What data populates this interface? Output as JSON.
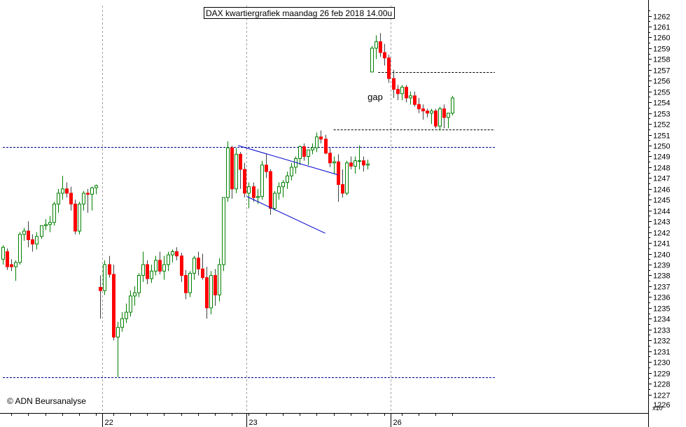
{
  "chart_data": {
    "type": "candlestick",
    "title": "DAX kwartiergrafiek maandag 26 feb 2018 14.00u",
    "copyright": "© ADN Beursanalyse",
    "y_unit_label": "x10",
    "ylim": [
      12260,
      12630
    ],
    "y_ticks": [
      12270,
      12280,
      12290,
      12300,
      12310,
      12320,
      12330,
      12340,
      12350,
      12360,
      12370,
      12380,
      12390,
      12400,
      12410,
      12420,
      12430,
      12440,
      12450,
      12460,
      12470,
      12480,
      12490,
      12500,
      12510,
      12520,
      12530,
      12540,
      12550,
      12560,
      12570,
      12580,
      12590,
      12600,
      12610,
      12620
    ],
    "y_tick_labels": [
      "1227",
      "1228",
      "1229",
      "1230",
      "1231",
      "1232",
      "1233",
      "1234",
      "1235",
      "1236",
      "1237",
      "1238",
      "1239",
      "1240",
      "1241",
      "1242",
      "1243",
      "1244",
      "1245",
      "1246",
      "1247",
      "1248",
      "1249",
      "1250",
      "1251",
      "1252",
      "1253",
      "1254",
      "1255",
      "1256",
      "1257",
      "1258",
      "1259",
      "1260",
      "1261",
      "1262"
    ],
    "y_bottom_partial_label": "1226",
    "x_labels": [
      {
        "label": "22",
        "bar": 23.5
      },
      {
        "label": "23",
        "bar": 57.5
      },
      {
        "label": "26",
        "bar": 91.5
      }
    ],
    "annotations": [
      {
        "text": "gap",
        "bar": 86,
        "price": 12542
      }
    ],
    "horizontal_lines": [
      {
        "price": 12499,
        "from_bar": 0,
        "to_bar": 116,
        "color": "#00008b",
        "dashed": true
      },
      {
        "price": 12286,
        "from_bar": 0,
        "to_bar": 116,
        "color": "#00008b",
        "dashed": true
      },
      {
        "price": 12568,
        "from_bar": 88.5,
        "to_bar": 116,
        "color": "#000000",
        "dashed": true
      },
      {
        "price": 12515,
        "from_bar": 78,
        "to_bar": 116,
        "color": "#000000",
        "dashed": true
      }
    ],
    "trend_lines": [
      {
        "from_bar": 55.5,
        "from_price": 12500,
        "to_bar": 79,
        "to_price": 12473,
        "color": "#0000cd"
      },
      {
        "from_bar": 57.5,
        "from_price": 12453,
        "to_bar": 76,
        "to_price": 12419,
        "color": "#0000cd"
      }
    ],
    "vertical_gridlines_bars": [
      23.5,
      57.5,
      91.5
    ],
    "candles": [
      [
        12395,
        12408,
        12390,
        12406
      ],
      [
        12402,
        12405,
        12385,
        12388
      ],
      [
        12390,
        12395,
        12384,
        12388
      ],
      [
        12388,
        12394,
        12375,
        12392
      ],
      [
        12392,
        12420,
        12390,
        12418
      ],
      [
        12418,
        12424,
        12412,
        12421
      ],
      [
        12421,
        12430,
        12406,
        12413
      ],
      [
        12413,
        12418,
        12402,
        12409
      ],
      [
        12409,
        12420,
        12404,
        12416
      ],
      [
        12416,
        12426,
        12414,
        12426
      ],
      [
        12426,
        12432,
        12422,
        12427
      ],
      [
        12427,
        12435,
        12420,
        12429
      ],
      [
        12429,
        12448,
        12426,
        12446
      ],
      [
        12446,
        12460,
        12438,
        12456
      ],
      [
        12456,
        12472,
        12450,
        12460
      ],
      [
        12460,
        12466,
        12452,
        12456
      ],
      [
        12456,
        12462,
        12440,
        12446
      ],
      [
        12446,
        12450,
        12418,
        12421
      ],
      [
        12421,
        12448,
        12418,
        12446
      ],
      [
        12446,
        12458,
        12440,
        12456
      ],
      [
        12456,
        12460,
        12438,
        12455
      ],
      [
        12455,
        12462,
        12440,
        12461
      ],
      [
        12461,
        12464,
        12455,
        12463
      ],
      [
        12369,
        12380,
        12340,
        12366
      ],
      [
        12366,
        12394,
        12362,
        12390
      ],
      [
        12390,
        12398,
        12378,
        12381
      ],
      [
        12381,
        12390,
        12320,
        12323
      ],
      [
        12323,
        12337,
        12286,
        12332
      ],
      [
        12332,
        12346,
        12328,
        12340
      ],
      [
        12340,
        12354,
        12336,
        12346
      ],
      [
        12346,
        12366,
        12342,
        12361
      ],
      [
        12361,
        12370,
        12352,
        12364
      ],
      [
        12364,
        12382,
        12360,
        12380
      ],
      [
        12380,
        12402,
        12374,
        12390
      ],
      [
        12390,
        12394,
        12372,
        12377
      ],
      [
        12377,
        12390,
        12373,
        12384
      ],
      [
        12384,
        12398,
        12380,
        12394
      ],
      [
        12394,
        12402,
        12381,
        12384
      ],
      [
        12384,
        12398,
        12376,
        12390
      ],
      [
        12390,
        12402,
        12384,
        12399
      ],
      [
        12399,
        12404,
        12392,
        12402
      ],
      [
        12402,
        12406,
        12394,
        12398
      ],
      [
        12398,
        12401,
        12374,
        12380
      ],
      [
        12380,
        12385,
        12358,
        12364
      ],
      [
        12364,
        12384,
        12360,
        12382
      ],
      [
        12382,
        12398,
        12376,
        12396
      ],
      [
        12396,
        12402,
        12380,
        12386
      ],
      [
        12386,
        12400,
        12376,
        12378
      ],
      [
        12378,
        12388,
        12340,
        12350
      ],
      [
        12350,
        12384,
        12344,
        12380
      ],
      [
        12380,
        12386,
        12352,
        12362
      ],
      [
        12362,
        12396,
        12356,
        12390
      ],
      [
        12390,
        12452,
        12384,
        12452
      ],
      [
        12452,
        12504,
        12448,
        12498
      ],
      [
        12498,
        12500,
        12451,
        12460
      ],
      [
        12460,
        12498,
        12456,
        12492
      ],
      [
        12492,
        12494,
        12460,
        12478
      ],
      [
        12478,
        12484,
        12452,
        12456
      ],
      [
        12456,
        12466,
        12442,
        12462
      ],
      [
        12462,
        12466,
        12448,
        12452
      ],
      [
        12452,
        12460,
        12446,
        12453
      ],
      [
        12453,
        12486,
        12450,
        12482
      ],
      [
        12482,
        12492,
        12470,
        12476
      ],
      [
        12476,
        12478,
        12436,
        12442
      ],
      [
        12442,
        12458,
        12440,
        12456
      ],
      [
        12456,
        12466,
        12450,
        12462
      ],
      [
        12462,
        12468,
        12452,
        12466
      ],
      [
        12466,
        12476,
        12460,
        12472
      ],
      [
        12472,
        12484,
        12468,
        12480
      ],
      [
        12480,
        12490,
        12474,
        12488
      ],
      [
        12488,
        12500,
        12482,
        12499
      ],
      [
        12499,
        12502,
        12486,
        12490
      ],
      [
        12490,
        12496,
        12482,
        12496
      ],
      [
        12496,
        12502,
        12492,
        12498
      ],
      [
        12498,
        12512,
        12494,
        12508
      ],
      [
        12508,
        12514,
        12502,
        12506
      ],
      [
        12506,
        12510,
        12492,
        12493
      ],
      [
        12493,
        12498,
        12480,
        12484
      ],
      [
        12484,
        12490,
        12474,
        12485
      ],
      [
        12485,
        12492,
        12448,
        12464
      ],
      [
        12464,
        12478,
        12452,
        12456
      ],
      [
        12456,
        12486,
        12454,
        12484
      ],
      [
        12484,
        12490,
        12478,
        12481
      ],
      [
        12481,
        12490,
        12474,
        12486
      ],
      [
        12486,
        12500,
        12478,
        12486
      ],
      [
        12486,
        12490,
        12476,
        12482
      ],
      [
        12482,
        12487,
        12478,
        12483
      ],
      [
        12568,
        12592,
        12568,
        12590
      ],
      [
        12590,
        12602,
        12580,
        12596
      ],
      [
        12596,
        12604,
        12582,
        12586
      ],
      [
        12586,
        12594,
        12574,
        12581
      ],
      [
        12581,
        12584,
        12558,
        12562
      ],
      [
        12562,
        12570,
        12544,
        12552
      ],
      [
        12552,
        12556,
        12542,
        12548
      ],
      [
        12548,
        12556,
        12542,
        12554
      ],
      [
        12554,
        12556,
        12540,
        12544
      ],
      [
        12544,
        12550,
        12538,
        12546
      ],
      [
        12546,
        12550,
        12536,
        12538
      ],
      [
        12538,
        12544,
        12530,
        12534
      ],
      [
        12534,
        12538,
        12524,
        12532
      ],
      [
        12532,
        12534,
        12526,
        12530
      ],
      [
        12530,
        12534,
        12520,
        12532
      ],
      [
        12532,
        12534,
        12516,
        12518
      ],
      [
        12518,
        12536,
        12514,
        12534
      ],
      [
        12534,
        12538,
        12516,
        12526
      ],
      [
        12526,
        12530,
        12516,
        12530
      ],
      [
        12530,
        12546,
        12528,
        12544
      ]
    ]
  }
}
